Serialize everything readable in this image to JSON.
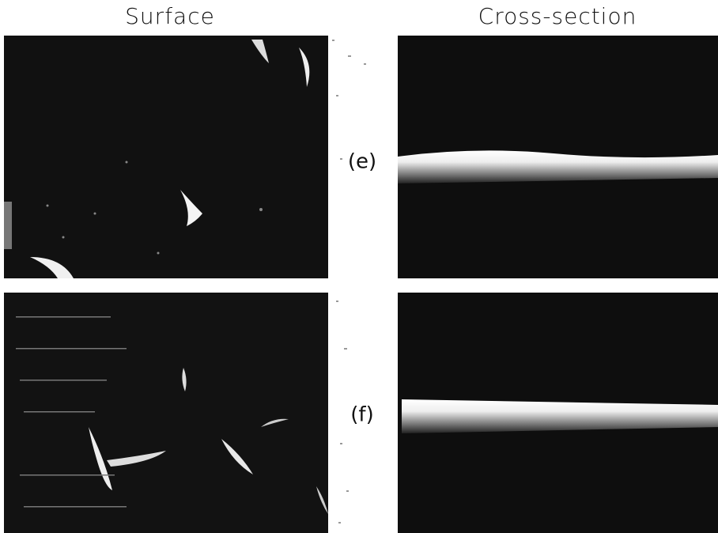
{
  "columns": [
    "Surface",
    "Cross-section"
  ],
  "rows": [
    {
      "label": "(e)"
    },
    {
      "label": "(f)"
    }
  ]
}
